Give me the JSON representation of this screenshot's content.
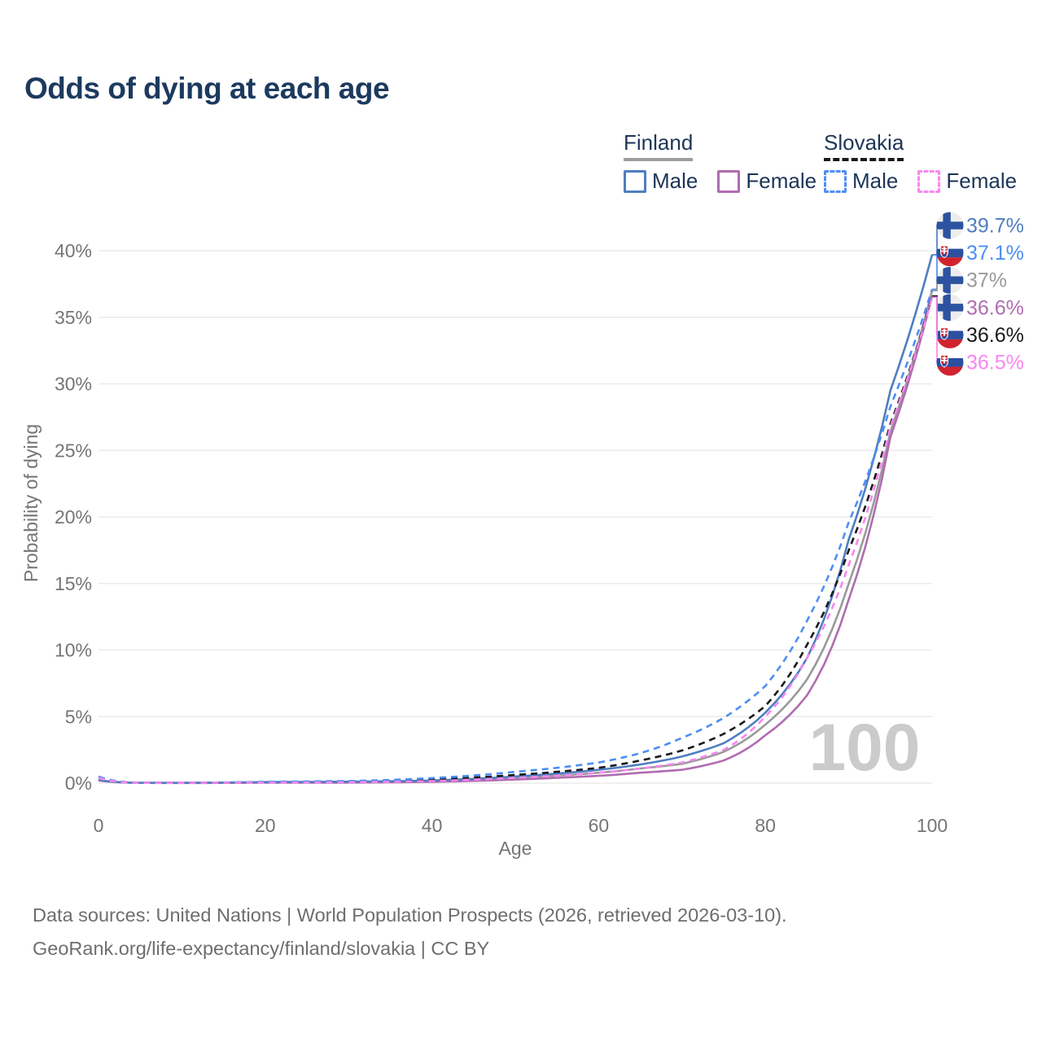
{
  "title": "Odds of dying at each age",
  "legend": {
    "groups": [
      {
        "name": "Finland",
        "line_style": "solid",
        "underline_color": "#9e9e9e",
        "items": [
          {
            "label": "Male",
            "color": "#4e7ec0"
          },
          {
            "label": "Female",
            "color": "#b06cb0"
          }
        ]
      },
      {
        "name": "Slovakia",
        "line_style": "dashed",
        "underline_color": "#1a1a1a",
        "items": [
          {
            "label": "Male",
            "color": "#4d8ef5"
          },
          {
            "label": "Female",
            "color": "#f986f0"
          }
        ]
      }
    ]
  },
  "watermark": "100",
  "footer": {
    "line1": "Data sources: United Nations | World Population Prospects (2026, retrieved 2026-03-10).",
    "line2": "GeoRank.org/life-expectancy/finland/slovakia | CC BY"
  },
  "chart_data": {
    "type": "line",
    "title": "Odds of dying at each age",
    "xlabel": "Age",
    "ylabel": "Probability of dying",
    "x_ticks": [
      0,
      20,
      40,
      60,
      80,
      100
    ],
    "y_ticks": [
      "0%",
      "5%",
      "10%",
      "15%",
      "20%",
      "25%",
      "30%",
      "35%",
      "40%"
    ],
    "xlim": [
      0,
      100
    ],
    "ylim_percent": [
      0,
      40
    ],
    "grid": "horizontal",
    "legend_position": "top-right",
    "ages": [
      0,
      5,
      10,
      15,
      20,
      25,
      30,
      35,
      40,
      45,
      50,
      55,
      60,
      65,
      70,
      75,
      80,
      85,
      90,
      95,
      100
    ],
    "series": [
      {
        "name": "Finland Male",
        "country": "Finland",
        "sex": "male",
        "style": "solid",
        "color": "#4e7ec0",
        "values": [
          0.25,
          0.02,
          0.02,
          0.04,
          0.08,
          0.09,
          0.11,
          0.14,
          0.2,
          0.32,
          0.5,
          0.72,
          1.0,
          1.4,
          2.0,
          3.0,
          5.3,
          9.4,
          18.3,
          29.5,
          39.7
        ],
        "end_value_percent": 39.7
      },
      {
        "name": "Finland Female",
        "country": "Finland",
        "sex": "female",
        "style": "solid",
        "color": "#b06cb0",
        "values": [
          0.2,
          0.02,
          0.01,
          0.02,
          0.03,
          0.03,
          0.04,
          0.06,
          0.1,
          0.17,
          0.27,
          0.4,
          0.55,
          0.78,
          1.0,
          1.7,
          3.6,
          6.6,
          13.8,
          26.0,
          36.6
        ],
        "end_value_percent": 36.6
      },
      {
        "name": "Finland Both sexes",
        "country": "Finland",
        "sex": "both",
        "style": "solid",
        "color": "#9a9a9a",
        "values": [
          0.22,
          0.02,
          0.02,
          0.03,
          0.06,
          0.06,
          0.08,
          0.1,
          0.15,
          0.25,
          0.39,
          0.56,
          0.78,
          1.1,
          1.45,
          2.35,
          4.4,
          7.8,
          15.0,
          26.4,
          37.0
        ],
        "end_value_percent": 37.0
      },
      {
        "name": "Slovakia Male",
        "country": "Slovakia",
        "sex": "male",
        "style": "dashed",
        "color": "#4d8ef5",
        "values": [
          0.5,
          0.03,
          0.02,
          0.05,
          0.1,
          0.13,
          0.16,
          0.24,
          0.38,
          0.58,
          0.85,
          1.15,
          1.55,
          2.25,
          3.4,
          4.9,
          7.3,
          12.2,
          19.6,
          28.3,
          37.1
        ],
        "end_value_percent": 37.1
      },
      {
        "name": "Slovakia Female",
        "country": "Slovakia",
        "sex": "female",
        "style": "dashed",
        "color": "#f986f0",
        "values": [
          0.4,
          0.02,
          0.02,
          0.03,
          0.04,
          0.05,
          0.07,
          0.1,
          0.16,
          0.26,
          0.4,
          0.56,
          0.78,
          1.1,
          1.55,
          2.5,
          5.0,
          9.4,
          16.4,
          26.8,
          36.5
        ],
        "end_value_percent": 36.5
      },
      {
        "name": "Slovakia Both sexes",
        "country": "Slovakia",
        "sex": "both",
        "style": "dashed",
        "color": "#1a1a1a",
        "values": [
          0.45,
          0.03,
          0.02,
          0.04,
          0.07,
          0.09,
          0.12,
          0.17,
          0.27,
          0.42,
          0.62,
          0.85,
          1.15,
          1.7,
          2.45,
          3.7,
          5.8,
          10.4,
          17.5,
          27.0,
          36.6
        ],
        "end_value_percent": 36.6
      }
    ],
    "end_labels": [
      {
        "series_index": 0,
        "text": "39.7%"
      },
      {
        "series_index": 3,
        "text": "37.1%"
      },
      {
        "series_index": 2,
        "text": "37%"
      },
      {
        "series_index": 1,
        "text": "36.6%"
      },
      {
        "series_index": 5,
        "text": "36.6%"
      },
      {
        "series_index": 4,
        "text": "36.5%"
      }
    ]
  }
}
